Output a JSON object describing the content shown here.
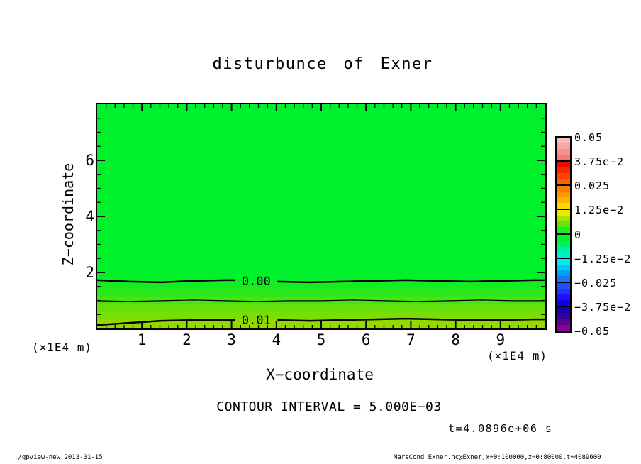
{
  "title": "disturbunce of Exner",
  "plot": {
    "x_axis": {
      "label": "X−coordinate",
      "min": 0,
      "max": 10,
      "major_ticks": [
        1,
        2,
        3,
        4,
        5,
        6,
        7,
        8,
        9
      ],
      "tick_labels": [
        "1",
        "2",
        "3",
        "4",
        "5",
        "6",
        "7",
        "8",
        "9"
      ],
      "minor_step": 0.2
    },
    "z_axis": {
      "label": "Z−coordinate",
      "min": 0,
      "max": 8,
      "major_ticks": [
        2,
        4,
        6
      ],
      "tick_labels": [
        "2",
        "4",
        "6"
      ],
      "minor_step": 0.5
    },
    "unit_left": "(×1E4 m)",
    "unit_right": "(×1E4 m)"
  },
  "chart_data": {
    "type": "heatmap",
    "subtype": "filled-contour",
    "title": "disturbunce of Exner",
    "xlabel": "X−coordinate (×1E4 m)",
    "ylabel": "Z−coordinate (×1E4 m)",
    "xlim": [
      0,
      10
    ],
    "ylim": [
      0,
      8
    ],
    "contour_interval": 0.005,
    "value_range": [
      -0.05,
      0.05
    ],
    "contours": [
      {
        "value": 0.0,
        "z": 1.7,
        "label": "0.00",
        "label_x": 3.55,
        "line_width": 2.5
      },
      {
        "value": 0.005,
        "z": 0.99,
        "label": null,
        "label_x": null,
        "line_width": 1.2
      },
      {
        "value": 0.01,
        "z": 0.3,
        "label": "0.01",
        "label_x": 3.55,
        "line_width": 2.5
      }
    ],
    "shading_bands": [
      {
        "z_from": 1.7,
        "z_to": 8.0,
        "value_bin": "about 0 and below",
        "color": "#00f02b"
      },
      {
        "z_from": 1.39,
        "z_to": 1.7,
        "value_bin": "0 to 0.002",
        "color": "#16ec21"
      },
      {
        "z_from": 1.11,
        "z_to": 1.39,
        "value_bin": "0.002 to 0.004",
        "color": "#2ee81a"
      },
      {
        "z_from": 0.86,
        "z_to": 1.11,
        "value_bin": "0.004 to 0.006",
        "color": "#48e513"
      },
      {
        "z_from": 0.61,
        "z_to": 0.86,
        "value_bin": "0.006 to 0.008",
        "color": "#62e10c"
      },
      {
        "z_from": 0.35,
        "z_to": 0.61,
        "value_bin": "0.008 to 0.010",
        "color": "#7cdd05"
      },
      {
        "z_from": 0.0,
        "z_to": 0.35,
        "value_bin": "0.010 to 0.012",
        "color": "#94d900"
      }
    ]
  },
  "colorbar": {
    "position": "right",
    "labels_top_to_bottom": [
      "0.05",
      "3.75e−2",
      "0.025",
      "1.25e−2",
      "0",
      "−1.25e−2",
      "−0.025",
      "−3.75e−2",
      "−0.05"
    ],
    "segments_top_to_bottom": [
      [
        "#f7bcbc",
        "#f6a6a6",
        "#f59090",
        "#f47a7a"
      ],
      [
        "#f20800",
        "#fa2800",
        "#ff4400",
        "#ff6000"
      ],
      [
        "#ff7c00",
        "#ff9800",
        "#ffb400",
        "#ffd800"
      ],
      [
        "#e8ea00",
        "#a8e400",
        "#60e80e",
        "#18ee20"
      ],
      [
        "#00f22b",
        "#00f060",
        "#00f098",
        "#00f0cc"
      ],
      [
        "#00ecf4",
        "#00c8f6",
        "#00a0f8",
        "#1478fa"
      ],
      [
        "#2050fc",
        "#2830fe",
        "#1c10ff",
        "#1000e8"
      ],
      [
        "#1400b0",
        "#340096",
        "#600090",
        "#8c009c"
      ]
    ]
  },
  "annotations": {
    "contour_interval_text": "CONTOUR INTERVAL = 5.000E−03",
    "time_text": "t=4.0896e+06 s"
  },
  "footer": {
    "left": "./gpview-new  2013-01-15",
    "right": "MarsCond_Exner.nc@Exner,x=0:100000,z=0:80000,t=4089600"
  }
}
